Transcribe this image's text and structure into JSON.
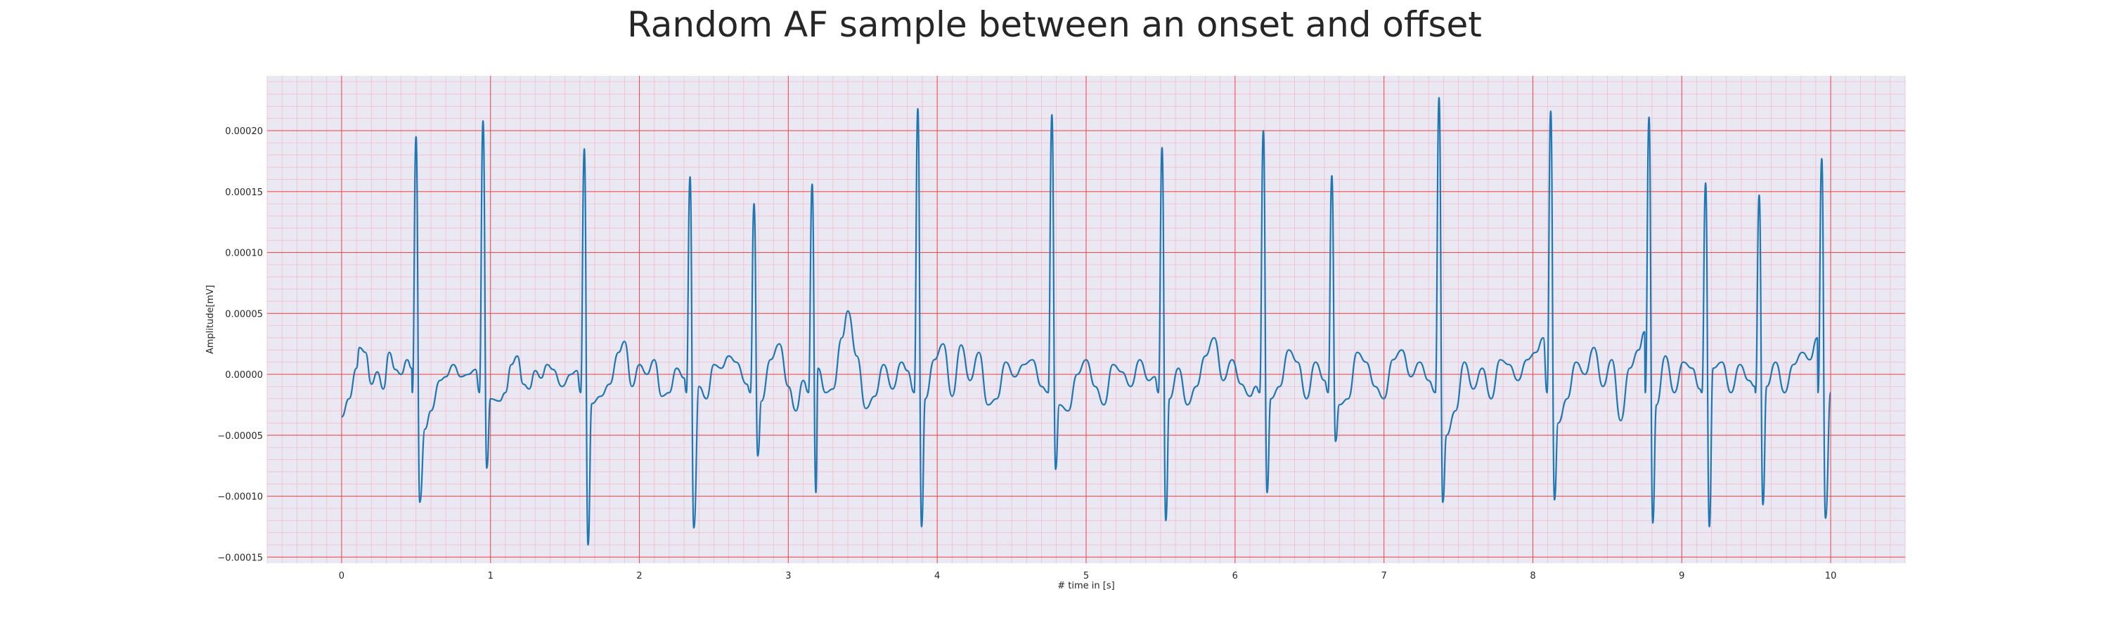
{
  "chart_data": {
    "type": "line",
    "title": "Random AF sample between an onset and offset",
    "xlabel": "# time in [s]",
    "ylabel": "Amplitude[mV]",
    "xlim": [
      -0.5,
      10.5
    ],
    "ylim": [
      -0.000155,
      0.000245
    ],
    "x_ticks": [
      0,
      1,
      2,
      3,
      4,
      5,
      6,
      7,
      8,
      9,
      10
    ],
    "y_ticks": [
      -0.00015,
      -0.0001,
      -5e-05,
      0.0,
      5e-05,
      0.0001,
      0.00015,
      0.0002
    ],
    "y_tick_labels": [
      "−0.00015",
      "−0.00010",
      "−0.00005",
      "0.00000",
      "0.00005",
      "0.00010",
      "0.00015",
      "0.00020"
    ],
    "x_tick_labels": [
      "0",
      "1",
      "2",
      "3",
      "4",
      "5",
      "6",
      "7",
      "8",
      "9",
      "10"
    ],
    "grid": true,
    "background_color": "#eae8f2",
    "major_grid_color": "#f05050",
    "minor_grid_color": "#f4b8c4",
    "series": [
      {
        "color": "#1f77b4",
        "r_peaks": [
          {
            "t": 0.5,
            "peak": 0.000195,
            "trough": -0.000105
          },
          {
            "t": 0.95,
            "peak": 0.000208,
            "trough": -7.7e-05
          },
          {
            "t": 1.63,
            "peak": 0.000185,
            "trough": -0.00014
          },
          {
            "t": 2.34,
            "peak": 0.000162,
            "trough": -0.000126
          },
          {
            "t": 2.77,
            "peak": 0.00014,
            "trough": -6.7e-05
          },
          {
            "t": 3.16,
            "peak": 0.000156,
            "trough": -9.7e-05
          },
          {
            "t": 3.87,
            "peak": 0.000218,
            "trough": -0.000125
          },
          {
            "t": 4.77,
            "peak": 0.000213,
            "trough": -7.8e-05
          },
          {
            "t": 5.51,
            "peak": 0.000186,
            "trough": -0.00012
          },
          {
            "t": 6.19,
            "peak": 0.0002,
            "trough": -9.7e-05
          },
          {
            "t": 6.65,
            "peak": 0.000163,
            "trough": -5.5e-05
          },
          {
            "t": 7.37,
            "peak": 0.000227,
            "trough": -0.000105
          },
          {
            "t": 8.12,
            "peak": 0.000216,
            "trough": -0.000103
          },
          {
            "t": 8.78,
            "peak": 0.000211,
            "trough": -0.000122
          },
          {
            "t": 9.16,
            "peak": 0.000157,
            "trough": -0.000125
          },
          {
            "t": 9.52,
            "peak": 0.000147,
            "trough": -0.000107
          },
          {
            "t": 9.94,
            "peak": 0.000177,
            "trough": -0.000118
          }
        ],
        "baseline_points": [
          [
            0.0,
            -3.5e-05
          ],
          [
            0.05,
            -2e-05
          ],
          [
            0.1,
            5e-06
          ],
          [
            0.12,
            2.2e-05
          ],
          [
            0.16,
            1.8e-05
          ],
          [
            0.2,
            -8e-06
          ],
          [
            0.24,
            2e-06
          ],
          [
            0.28,
            -1.2e-05
          ],
          [
            0.32,
            1.8e-05
          ],
          [
            0.36,
            4e-06
          ],
          [
            0.4,
            0.0
          ],
          [
            0.44,
            1.2e-05
          ],
          [
            0.47,
            5e-06
          ],
          [
            0.56,
            -4.5e-05
          ],
          [
            0.6,
            -3e-05
          ],
          [
            0.66,
            -5e-06
          ],
          [
            0.7,
            -2e-06
          ],
          [
            0.75,
            8e-06
          ],
          [
            0.8,
            -2e-06
          ],
          [
            0.85,
            0.0
          ],
          [
            0.9,
            4e-06
          ],
          [
            1.0,
            -2e-05
          ],
          [
            1.06,
            -2.2e-05
          ],
          [
            1.1,
            -1.5e-05
          ],
          [
            1.14,
            8e-06
          ],
          [
            1.18,
            1.5e-05
          ],
          [
            1.22,
            -8e-06
          ],
          [
            1.26,
            -1.2e-05
          ],
          [
            1.3,
            3e-06
          ],
          [
            1.34,
            -3e-06
          ],
          [
            1.38,
            8e-06
          ],
          [
            1.42,
            4e-06
          ],
          [
            1.48,
            -1e-05
          ],
          [
            1.54,
            0.0
          ],
          [
            1.58,
            3e-06
          ],
          [
            1.68,
            -2.4e-05
          ],
          [
            1.74,
            -1.8e-05
          ],
          [
            1.8,
            -8e-06
          ],
          [
            1.86,
            1.8e-05
          ],
          [
            1.9,
            2.7e-05
          ],
          [
            1.95,
            -1e-05
          ],
          [
            2.0,
            8e-06
          ],
          [
            2.05,
            0.0
          ],
          [
            2.1,
            1.2e-05
          ],
          [
            2.15,
            -1.8e-05
          ],
          [
            2.2,
            -1.5e-05
          ],
          [
            2.25,
            5e-06
          ],
          [
            2.3,
            -3e-06
          ],
          [
            2.4,
            -1e-05
          ],
          [
            2.45,
            -2e-05
          ],
          [
            2.5,
            8e-06
          ],
          [
            2.55,
            5e-06
          ],
          [
            2.6,
            1.5e-05
          ],
          [
            2.65,
            1e-05
          ],
          [
            2.72,
            -8e-06
          ],
          [
            2.82,
            -2.2e-05
          ],
          [
            2.88,
            1.2e-05
          ],
          [
            2.94,
            2.5e-05
          ],
          [
            3.0,
            -1e-05
          ],
          [
            3.05,
            -3e-05
          ],
          [
            3.1,
            -5e-06
          ],
          [
            3.2,
            5e-06
          ],
          [
            3.25,
            -1.5e-05
          ],
          [
            3.3,
            -1.2e-05
          ],
          [
            3.36,
            3e-05
          ],
          [
            3.4,
            5.2e-05
          ],
          [
            3.46,
            1.5e-05
          ],
          [
            3.52,
            -2.8e-05
          ],
          [
            3.58,
            -1.8e-05
          ],
          [
            3.64,
            8e-06
          ],
          [
            3.7,
            -1.2e-05
          ],
          [
            3.76,
            1e-05
          ],
          [
            3.8,
            3e-06
          ],
          [
            3.92,
            -2e-05
          ],
          [
            3.98,
            1.2e-05
          ],
          [
            4.04,
            2.5e-05
          ],
          [
            4.1,
            -1.8e-05
          ],
          [
            4.16,
            2.4e-05
          ],
          [
            4.22,
            -5e-06
          ],
          [
            4.28,
            1.8e-05
          ],
          [
            4.34,
            -2.5e-05
          ],
          [
            4.4,
            -2e-05
          ],
          [
            4.46,
            1e-05
          ],
          [
            4.52,
            -2e-06
          ],
          [
            4.58,
            8e-06
          ],
          [
            4.64,
            1.2e-05
          ],
          [
            4.7,
            -1e-05
          ],
          [
            4.82,
            -2.5e-05
          ],
          [
            4.88,
            -3e-05
          ],
          [
            4.94,
            0.0
          ],
          [
            5.0,
            1.2e-05
          ],
          [
            5.06,
            -1e-05
          ],
          [
            5.12,
            -2.5e-05
          ],
          [
            5.18,
            8e-06
          ],
          [
            5.24,
            2e-06
          ],
          [
            5.3,
            -1e-05
          ],
          [
            5.36,
            1.2e-05
          ],
          [
            5.42,
            -5e-06
          ],
          [
            5.46,
            -2e-06
          ],
          [
            5.56,
            -2e-05
          ],
          [
            5.62,
            5e-06
          ],
          [
            5.68,
            -2.5e-05
          ],
          [
            5.74,
            -1e-05
          ],
          [
            5.8,
            1.5e-05
          ],
          [
            5.86,
            3e-05
          ],
          [
            5.92,
            -5e-06
          ],
          [
            5.98,
            1.2e-05
          ],
          [
            6.04,
            -8e-06
          ],
          [
            6.1,
            -1.8e-05
          ],
          [
            6.14,
            -1e-05
          ],
          [
            6.24,
            -2e-05
          ],
          [
            6.3,
            -1e-05
          ],
          [
            6.36,
            2e-05
          ],
          [
            6.42,
            1e-05
          ],
          [
            6.48,
            -2e-05
          ],
          [
            6.54,
            1e-05
          ],
          [
            6.6,
            -5e-06
          ],
          [
            6.7,
            -2.5e-05
          ],
          [
            6.76,
            -2e-05
          ],
          [
            6.82,
            1.8e-05
          ],
          [
            6.88,
            1e-05
          ],
          [
            6.94,
            -1e-05
          ],
          [
            7.0,
            -2e-05
          ],
          [
            7.06,
            1.2e-05
          ],
          [
            7.12,
            2e-05
          ],
          [
            7.18,
            -2e-06
          ],
          [
            7.24,
            1e-05
          ],
          [
            7.3,
            -5e-06
          ],
          [
            7.42,
            -5e-05
          ],
          [
            7.48,
            -3e-05
          ],
          [
            7.54,
            1e-05
          ],
          [
            7.6,
            -1.2e-05
          ],
          [
            7.66,
            5e-06
          ],
          [
            7.72,
            -2e-05
          ],
          [
            7.78,
            1.2e-05
          ],
          [
            7.84,
            8e-06
          ],
          [
            7.9,
            -5e-06
          ],
          [
            7.96,
            1.2e-05
          ],
          [
            8.02,
            1.8e-05
          ],
          [
            8.07,
            3e-05
          ],
          [
            8.17,
            -4e-05
          ],
          [
            8.23,
            -2e-05
          ],
          [
            8.29,
            1e-05
          ],
          [
            8.35,
            0.0
          ],
          [
            8.41,
            2.2e-05
          ],
          [
            8.47,
            -1e-05
          ],
          [
            8.53,
            1.2e-05
          ],
          [
            8.59,
            -3.8e-05
          ],
          [
            8.65,
            5e-06
          ],
          [
            8.71,
            2e-05
          ],
          [
            8.75,
            3.5e-05
          ],
          [
            8.83,
            -2.5e-05
          ],
          [
            8.89,
            1.5e-05
          ],
          [
            8.95,
            -1.5e-05
          ],
          [
            9.01,
            1e-05
          ],
          [
            9.07,
            5e-06
          ],
          [
            9.12,
            -1.2e-05
          ],
          [
            9.21,
            5e-06
          ],
          [
            9.27,
            1e-05
          ],
          [
            9.33,
            -1.5e-05
          ],
          [
            9.39,
            8e-06
          ],
          [
            9.45,
            -5e-06
          ],
          [
            9.49,
            -1e-05
          ],
          [
            9.57,
            -1e-05
          ],
          [
            9.63,
            1e-05
          ],
          [
            9.69,
            -1.5e-05
          ],
          [
            9.75,
            8e-06
          ],
          [
            9.81,
            1.8e-05
          ],
          [
            9.86,
            1.2e-05
          ],
          [
            9.91,
            3e-05
          ],
          [
            10.0,
            -1.5e-05
          ]
        ]
      }
    ]
  }
}
